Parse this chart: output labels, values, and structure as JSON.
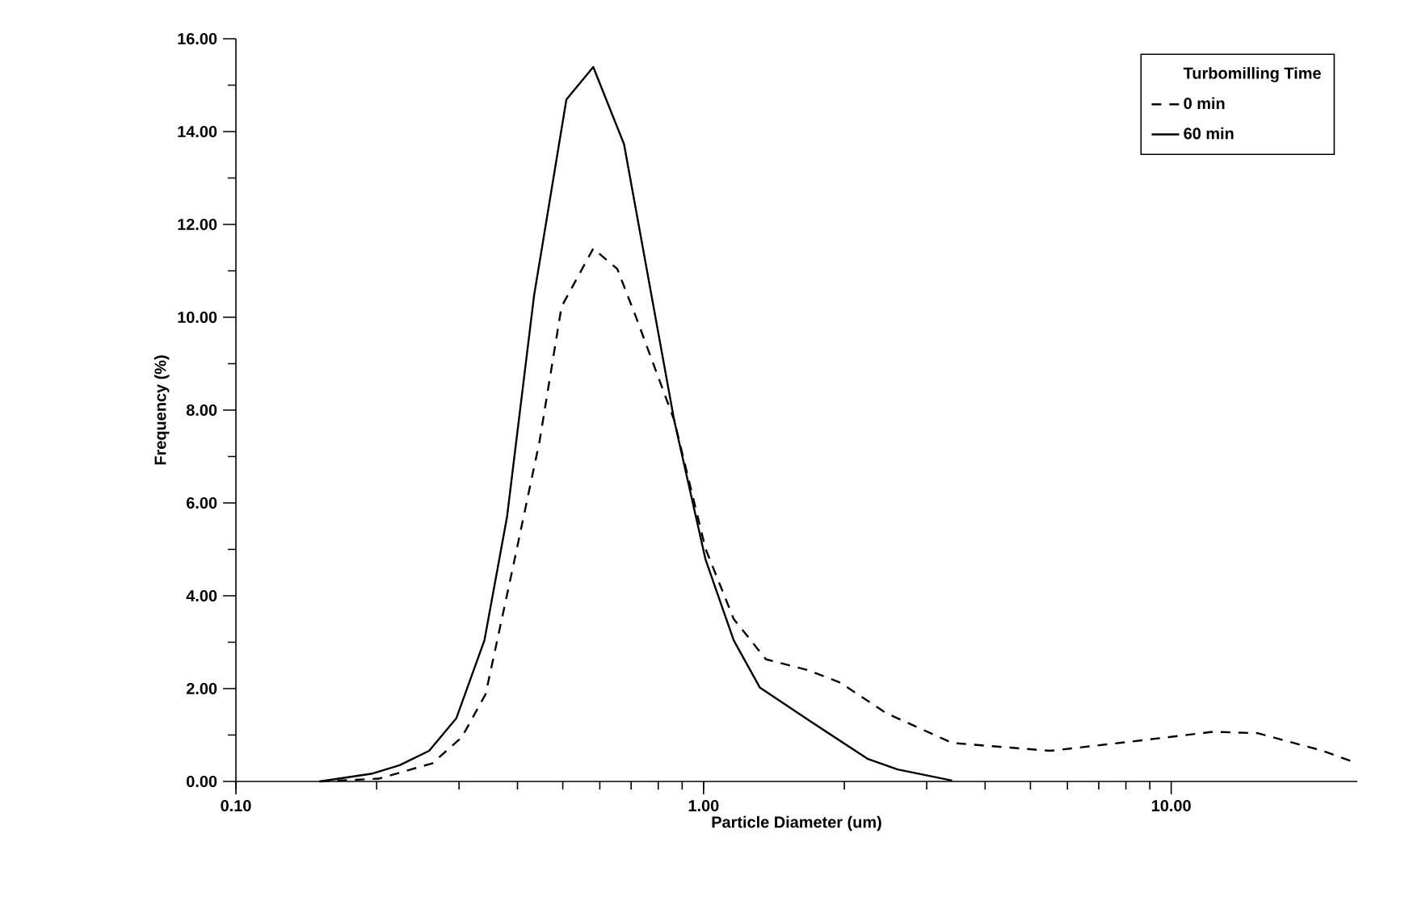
{
  "chart_data": {
    "type": "line",
    "xlabel": "Particle Diameter (um)",
    "ylabel": "Frequency (%)",
    "legend_title": "Turbomilling Time",
    "log": "x",
    "xlim": [
      0.1,
      25
    ],
    "ylim": [
      0,
      16
    ],
    "xticks": [
      {
        "value": 0.1,
        "label": "0.10"
      },
      {
        "value": 1,
        "label": "1.00"
      },
      {
        "value": 10,
        "label": "10.00"
      }
    ],
    "yticks": [
      {
        "value": 0,
        "label": "0.00"
      },
      {
        "value": 2,
        "label": "2.00"
      },
      {
        "value": 4,
        "label": "4.00"
      },
      {
        "value": 6,
        "label": "6.00"
      },
      {
        "value": 8,
        "label": "8.00"
      },
      {
        "value": 10,
        "label": "10.00"
      },
      {
        "value": 12,
        "label": "12.00"
      },
      {
        "value": 14,
        "label": "14.00"
      },
      {
        "value": 16,
        "label": "16.00"
      }
    ],
    "legend": "top right",
    "grid": false,
    "marker": "none",
    "series": [
      {
        "name": "0 min",
        "color": "#000000",
        "line_style": "dashed",
        "x": [
          0.151,
          0.202,
          0.263,
          0.304,
          0.342,
          0.39,
          0.446,
          0.497,
          0.581,
          0.654,
          0.718,
          0.865,
          1.01,
          1.16,
          1.36,
          1.67,
          1.96,
          2.46,
          3.4,
          5.51,
          8.24,
          12.3,
          15.3,
          21.1,
          25
        ],
        "values": [
          0,
          0.06,
          0.39,
          0.95,
          1.88,
          4.55,
          7.33,
          10.23,
          11.48,
          11.04,
          9.99,
          7.79,
          5.01,
          3.5,
          2.63,
          2.4,
          2.13,
          1.47,
          0.83,
          0.66,
          0.86,
          1.07,
          1.04,
          0.66,
          0.39
        ]
      },
      {
        "name": "60 min",
        "color": "#000000",
        "line_style": "solid",
        "x": [
          0.151,
          0.196,
          0.224,
          0.259,
          0.296,
          0.34,
          0.38,
          0.434,
          0.509,
          0.581,
          0.676,
          0.865,
          1.01,
          1.16,
          1.32,
          1.69,
          2.24,
          2.6,
          3.4
        ],
        "values": [
          0,
          0.17,
          0.35,
          0.66,
          1.36,
          3.04,
          5.7,
          10.46,
          14.69,
          15.39,
          13.73,
          7.79,
          4.78,
          3.04,
          2.02,
          1.3,
          0.49,
          0.26,
          0.02
        ]
      }
    ]
  }
}
